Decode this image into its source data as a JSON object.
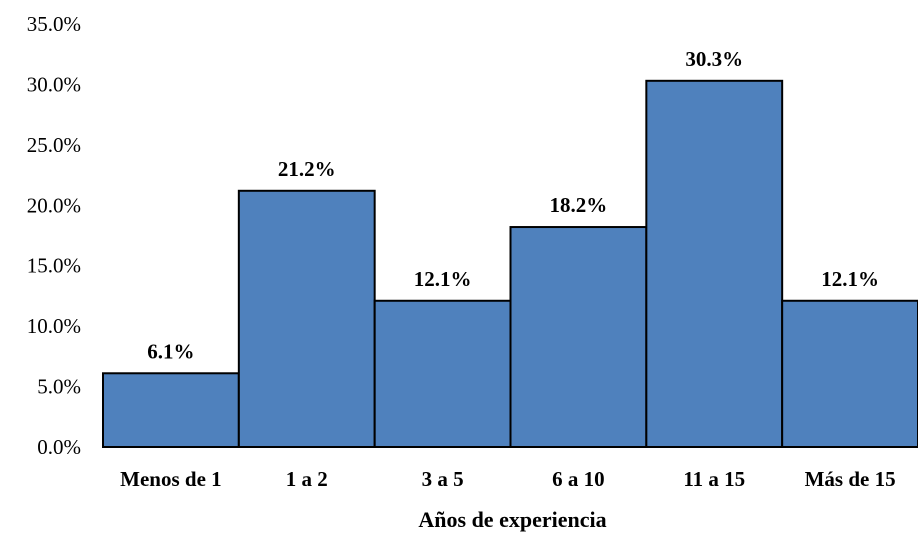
{
  "chart_data": {
    "type": "bar",
    "categories": [
      "Menos de 1",
      "1 a 2",
      "3 a 5",
      "6 a 10",
      "11 a 15",
      "Más de 15"
    ],
    "values": [
      6.1,
      21.2,
      12.1,
      18.2,
      30.3,
      12.1
    ],
    "data_labels": [
      "6.1%",
      "21.2%",
      "12.1%",
      "18.2%",
      "30.3%",
      "12.1%"
    ],
    "title": "",
    "xlabel": "Años de experiencia",
    "ylabel": "",
    "ylim": [
      0,
      35
    ],
    "yticks": [
      0,
      5,
      10,
      15,
      20,
      25,
      30,
      35
    ],
    "ytick_labels": [
      "0.0%",
      "5.0%",
      "10.0%",
      "15.0%",
      "20.0%",
      "25.0%",
      "30.0%",
      "35.0%"
    ],
    "grid": false,
    "legend": "none",
    "bar_color": "#4f81bd",
    "bar_edge_color": "#000000"
  }
}
